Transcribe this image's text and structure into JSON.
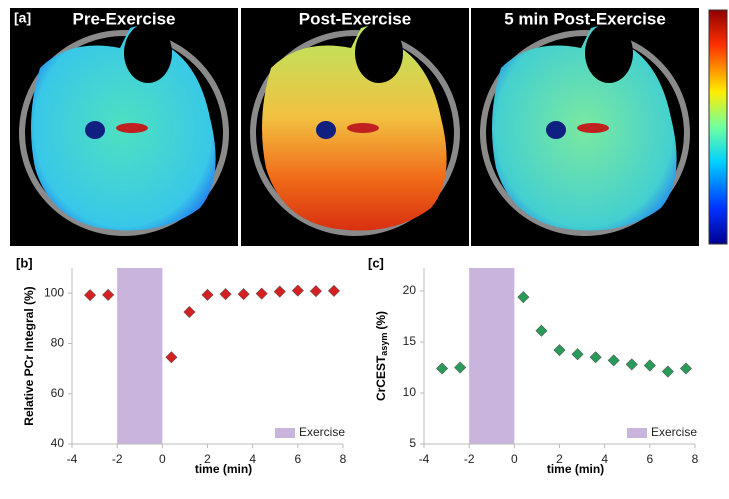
{
  "panel_a": {
    "label": "[a]",
    "titles": [
      "Pre-Exercise",
      "Post-Exercise",
      "5 min Post-Exercise"
    ]
  },
  "chart_data": [
    {
      "type": "scatter",
      "label": "[b]",
      "ylabel": "Relative PCr Integral (%)",
      "xlabel": "time (min)",
      "xlim": [
        -4,
        8
      ],
      "xticks": [
        -4,
        -2,
        0,
        2,
        4,
        6,
        8
      ],
      "ylim": [
        40,
        110
      ],
      "yticks": [
        40,
        60,
        80,
        100
      ],
      "x": [
        -3.2,
        -2.4,
        0.4,
        1.2,
        2.0,
        2.8,
        3.6,
        4.4,
        5.2,
        6.0,
        6.8,
        7.6
      ],
      "series": [
        {
          "color": "#d42020",
          "values": [
            99.2,
            99.3,
            74.5,
            92.5,
            99.3,
            99.6,
            99.6,
            99.8,
            100.6,
            101.0,
            100.8,
            100.9
          ]
        }
      ],
      "shaded_region": {
        "name": "Exercise",
        "xlim": [
          -2,
          0
        ],
        "color": "#c8b4dc"
      },
      "legend": "lower right"
    },
    {
      "type": "scatter",
      "label": "[c]",
      "ylabel": "CrCEST",
      "ylabel_sub": "asym",
      "ylabel_unit": "(%)",
      "xlabel": "time (min)",
      "xlim": [
        -4,
        8
      ],
      "xticks": [
        -4,
        -2,
        0,
        2,
        4,
        6,
        8
      ],
      "ylim": [
        5,
        22.25
      ],
      "yticks": [
        5,
        10,
        15,
        20
      ],
      "x": [
        -3.2,
        -2.4,
        0.4,
        1.2,
        2.0,
        2.8,
        3.6,
        4.4,
        5.2,
        6.0,
        6.8,
        7.6
      ],
      "series": [
        {
          "color": "#2a9a5a",
          "values": [
            12.4,
            12.5,
            19.4,
            16.1,
            14.2,
            13.8,
            13.5,
            13.2,
            12.8,
            12.7,
            12.1,
            12.4
          ]
        }
      ],
      "shaded_region": {
        "name": "Exercise",
        "xlim": [
          -2,
          0
        ],
        "color": "#c8b4dc"
      },
      "legend": "lower right"
    }
  ]
}
